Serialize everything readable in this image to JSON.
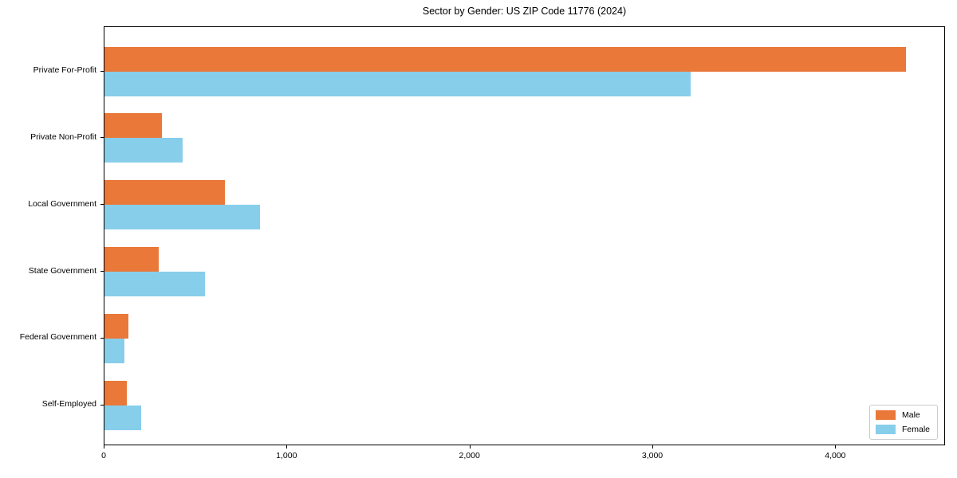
{
  "title": "Sector by Gender: US ZIP Code 11776 (2024)",
  "colors": {
    "male": "#E97839",
    "female": "#87CEEB",
    "axis": "#000000",
    "legend_border": "#cccccc",
    "background": "#ffffff"
  },
  "legend": {
    "position": "lower right",
    "items": [
      {
        "label": "Male",
        "color": "#E97839"
      },
      {
        "label": "Female",
        "color": "#87CEEB"
      }
    ]
  },
  "chart_data": {
    "type": "bar",
    "orientation": "horizontal",
    "title": "Sector by Gender: US ZIP Code 11776 (2024)",
    "categories": [
      "Private For-Profit",
      "Private Non-Profit",
      "Local Government",
      "State Government",
      "Federal Government",
      "Self-Employed"
    ],
    "series": [
      {
        "name": "Male",
        "color": "#E97839",
        "values": [
          4380,
          315,
          660,
          295,
          130,
          120
        ]
      },
      {
        "name": "Female",
        "color": "#87CEEB",
        "values": [
          3205,
          425,
          850,
          550,
          110,
          200
        ]
      }
    ],
    "xlabel": "",
    "ylabel": "",
    "xlim": [
      0,
      4600
    ],
    "xticks": [
      0,
      1000,
      2000,
      3000,
      4000
    ],
    "xtick_labels": [
      "0",
      "1,000",
      "2,000",
      "3,000",
      "4,000"
    ],
    "grid": false,
    "legend_position": "lower right"
  }
}
